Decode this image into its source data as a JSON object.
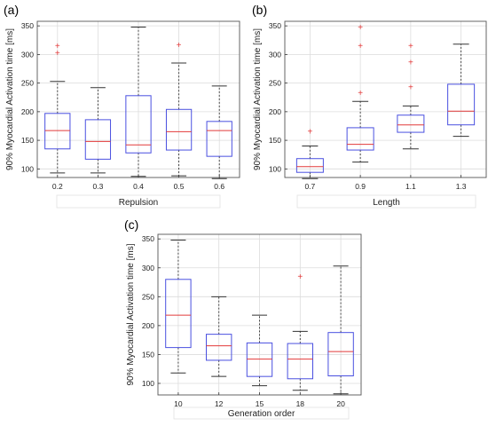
{
  "panels": [
    {
      "id": "a",
      "tag": "(a)"
    },
    {
      "id": "b",
      "tag": "(b)"
    },
    {
      "id": "c",
      "tag": "(c)"
    }
  ],
  "colors": {
    "box": "#4a50e0",
    "median": "#e23a3a",
    "outlier": "#e23a3a",
    "whisker": "#333333",
    "grid": "#dcdcdc",
    "frame": "#555555"
  },
  "chart_data": [
    {
      "type": "box",
      "xlabel": "Repulsion",
      "ylabel": "90% Myocardial Activation time [ms]",
      "ylim": [
        85,
        358
      ],
      "yticks": [
        100,
        150,
        200,
        250,
        300,
        350
      ],
      "grid": true,
      "categories": [
        "0.2",
        "0.3",
        "0.4",
        "0.5",
        "0.6"
      ],
      "boxes": [
        {
          "whisker_low": 93,
          "q1": 135,
          "median": 167,
          "q3": 197,
          "whisker_high": 253,
          "outliers": [
            303,
            315
          ]
        },
        {
          "whisker_low": 93,
          "q1": 117,
          "median": 148,
          "q3": 186,
          "whisker_high": 242,
          "outliers": []
        },
        {
          "whisker_low": 87,
          "q1": 128,
          "median": 142,
          "q3": 228,
          "whisker_high": 348,
          "outliers": []
        },
        {
          "whisker_low": 88,
          "q1": 133,
          "median": 165,
          "q3": 204,
          "whisker_high": 285,
          "outliers": [
            317
          ]
        },
        {
          "whisker_low": 83,
          "q1": 122,
          "median": 167,
          "q3": 183,
          "whisker_high": 245,
          "outliers": []
        }
      ]
    },
    {
      "type": "box",
      "xlabel": "Length",
      "ylabel": "90% Myocardial Activation time [ms]",
      "ylim": [
        85,
        358
      ],
      "yticks": [
        100,
        150,
        200,
        250,
        300,
        350
      ],
      "grid": true,
      "categories": [
        "0.7",
        "0.9",
        "1.1",
        "1.3"
      ],
      "boxes": [
        {
          "whisker_low": 83,
          "q1": 94,
          "median": 104,
          "q3": 118,
          "whisker_high": 140,
          "outliers": [
            166
          ]
        },
        {
          "whisker_low": 112,
          "q1": 133,
          "median": 143,
          "q3": 172,
          "whisker_high": 218,
          "outliers": [
            233,
            315,
            348
          ]
        },
        {
          "whisker_low": 135,
          "q1": 164,
          "median": 177,
          "q3": 194,
          "whisker_high": 210,
          "outliers": [
            243,
            287,
            315
          ]
        },
        {
          "whisker_low": 157,
          "q1": 177,
          "median": 201,
          "q3": 248,
          "whisker_high": 318,
          "outliers": []
        }
      ]
    },
    {
      "type": "box",
      "xlabel": "Generation order",
      "ylabel": "90% Myocardial Activation time [ms]",
      "ylim": [
        80,
        358
      ],
      "yticks": [
        100,
        150,
        200,
        250,
        300,
        350
      ],
      "grid": true,
      "categories": [
        "10",
        "12",
        "15",
        "18",
        "20"
      ],
      "boxes": [
        {
          "whisker_low": 118,
          "q1": 162,
          "median": 218,
          "q3": 280,
          "whisker_high": 348,
          "outliers": []
        },
        {
          "whisker_low": 112,
          "q1": 140,
          "median": 165,
          "q3": 185,
          "whisker_high": 250,
          "outliers": []
        },
        {
          "whisker_low": 96,
          "q1": 112,
          "median": 142,
          "q3": 170,
          "whisker_high": 218,
          "outliers": []
        },
        {
          "whisker_low": 88,
          "q1": 108,
          "median": 142,
          "q3": 169,
          "whisker_high": 190,
          "outliers": [
            285
          ]
        },
        {
          "whisker_low": 82,
          "q1": 113,
          "median": 155,
          "q3": 188,
          "whisker_high": 303,
          "outliers": []
        }
      ]
    }
  ]
}
